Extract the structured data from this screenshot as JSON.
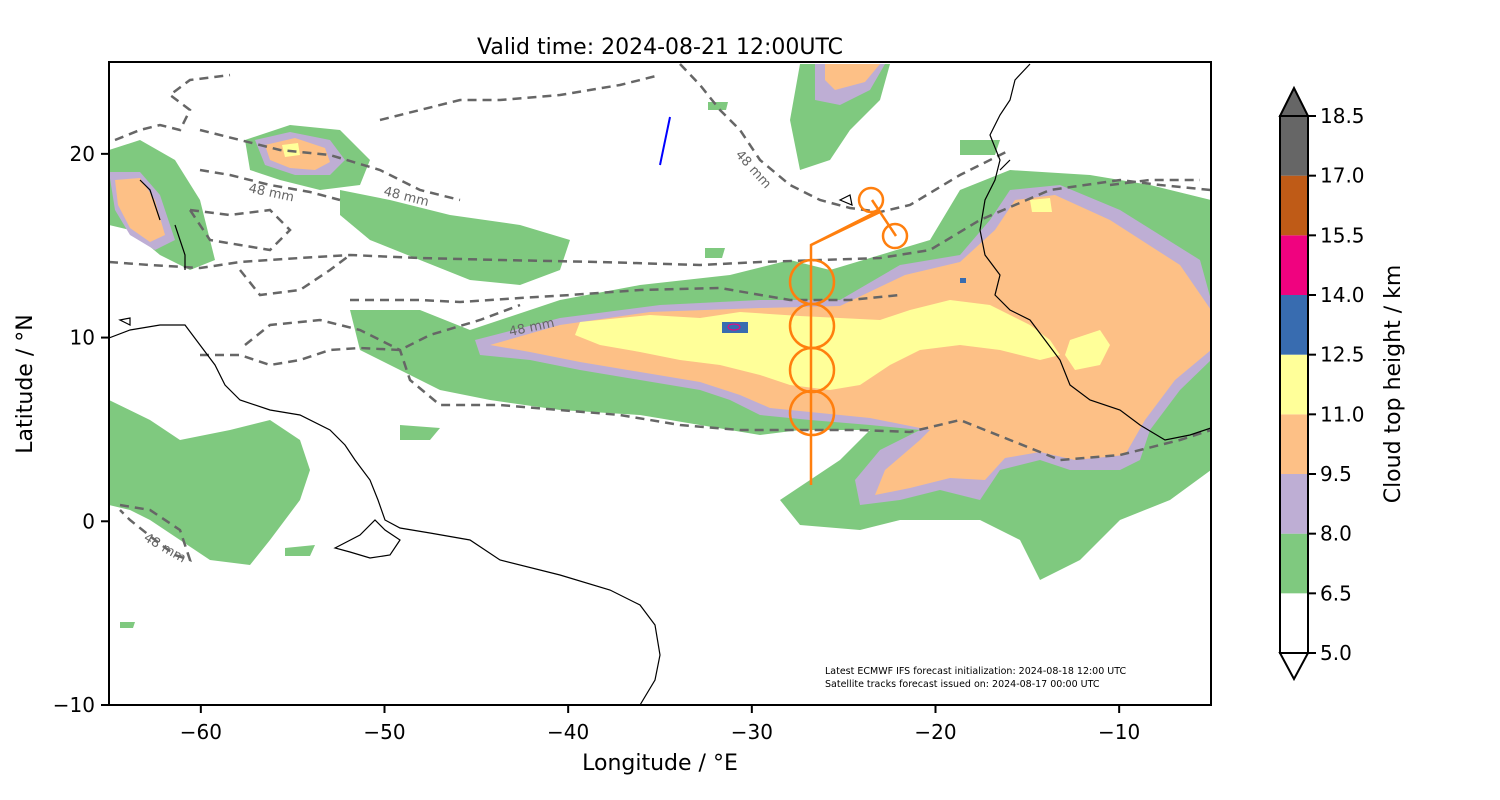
{
  "title": "Valid time: 2024-08-21 12:00UTC",
  "xlabel": "Longitude / °E",
  "ylabel": "Latitude / °N",
  "x_ticks": [
    {
      "value": -60,
      "label": "−60"
    },
    {
      "value": -50,
      "label": "−50"
    },
    {
      "value": -40,
      "label": "−40"
    },
    {
      "value": -30,
      "label": "−30"
    },
    {
      "value": -20,
      "label": "−20"
    },
    {
      "value": -10,
      "label": "−10"
    }
  ],
  "y_ticks": [
    {
      "value": 20,
      "label": "20"
    },
    {
      "value": 10,
      "label": "10"
    },
    {
      "value": 0,
      "label": "0"
    },
    {
      "value": -10,
      "label": "−10"
    }
  ],
  "map_extent": {
    "lon": [
      -65,
      -5
    ],
    "lat": [
      -10,
      25
    ]
  },
  "colorbar": {
    "label": "Cloud top height / km",
    "extend": "both",
    "ticks": [
      "5.0",
      "6.5",
      "8.0",
      "9.5",
      "11.0",
      "12.5",
      "14.0",
      "15.5",
      "17.0",
      "18.5"
    ],
    "colors": [
      "#ffffff",
      "#7fc97f",
      "#beaed4",
      "#fdc086",
      "#ffff99",
      "#386cb0",
      "#f0027f",
      "#bf5b17",
      "#666666"
    ]
  },
  "contour_label": "48 mm",
  "annotation": {
    "line1": "Latest ECMWF IFS forecast initialization: 2024-08-18 12:00 UTC",
    "line2": "Satellite tracks forecast issued on: 2024-08-17 00:00 UTC"
  },
  "colors": {
    "flight_track": "#ff7f0e",
    "satellite_track": "#0000ff",
    "contour": "#666666",
    "coastline": "#000000"
  }
}
